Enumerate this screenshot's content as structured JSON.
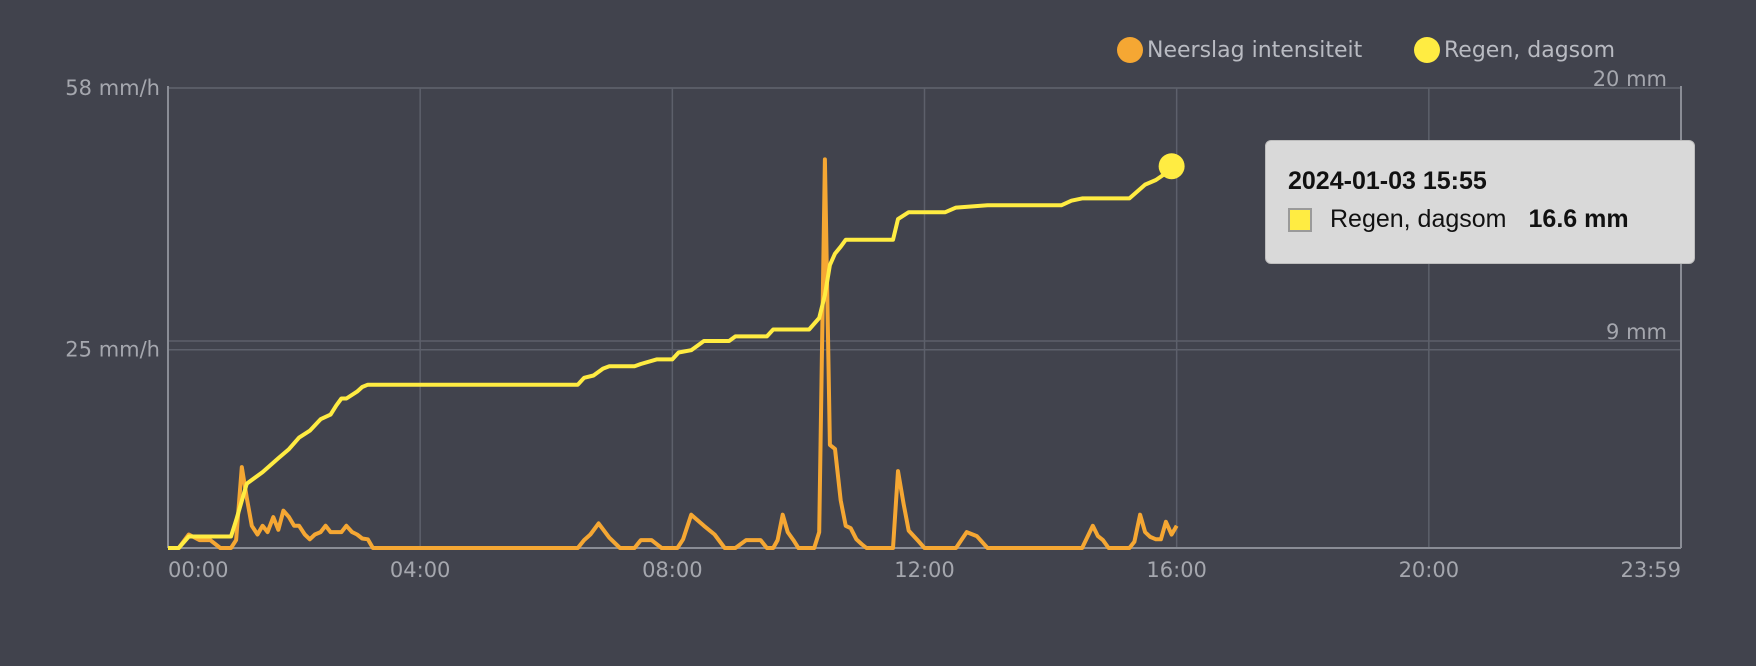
{
  "colors": {
    "background": "#41434d",
    "intensity": "#f5a733",
    "cumulative": "#ffec42",
    "grid": "#5d606b",
    "axis": "#8a8d96",
    "text": "#a5a7ae"
  },
  "legend": [
    {
      "label": "Neerslag intensiteit",
      "color": "#f5a733"
    },
    {
      "label": "Regen, dagsom",
      "color": "#ffec42"
    }
  ],
  "tooltip": {
    "title": "2024-01-03 15:55",
    "series": "Regen, dagsom",
    "value": "16.6 mm"
  },
  "chart_data": {
    "type": "line",
    "x_unit": "hours since 00:00",
    "x_range": [
      0,
      24
    ],
    "x_ticks": [
      "00:00",
      "04:00",
      "08:00",
      "12:00",
      "16:00",
      "20:00",
      "23:59"
    ],
    "y_left": {
      "ticks": [
        "58 mm/h",
        "25 mm/h"
      ],
      "range": [
        0,
        58
      ]
    },
    "y_right": {
      "ticks": [
        "20 mm",
        "9 mm"
      ],
      "range": [
        0,
        20
      ]
    },
    "series": [
      {
        "name": "Neerslag intensiteit",
        "axis": "left",
        "unit": "mm/h",
        "points": [
          [
            0,
            0
          ],
          [
            0.17,
            0
          ],
          [
            0.33,
            1.7
          ],
          [
            0.5,
            1
          ],
          [
            0.67,
            1
          ],
          [
            0.83,
            0
          ],
          [
            1.0,
            0
          ],
          [
            1.08,
            1
          ],
          [
            1.17,
            10.2
          ],
          [
            1.25,
            6.3
          ],
          [
            1.33,
            2.8
          ],
          [
            1.42,
            1.7
          ],
          [
            1.5,
            2.8
          ],
          [
            1.58,
            2
          ],
          [
            1.67,
            3.9
          ],
          [
            1.75,
            2.3
          ],
          [
            1.83,
            4.7
          ],
          [
            1.92,
            3.9
          ],
          [
            2.0,
            2.8
          ],
          [
            2.08,
            2.8
          ],
          [
            2.17,
            1.7
          ],
          [
            2.25,
            1.1
          ],
          [
            2.33,
            1.7
          ],
          [
            2.42,
            2
          ],
          [
            2.5,
            2.8
          ],
          [
            2.58,
            2
          ],
          [
            2.67,
            2
          ],
          [
            2.75,
            2
          ],
          [
            2.83,
            2.8
          ],
          [
            2.92,
            2
          ],
          [
            3.0,
            1.7
          ],
          [
            3.08,
            1.2
          ],
          [
            3.17,
            1.1
          ],
          [
            3.25,
            0
          ],
          [
            6.5,
            0
          ],
          [
            6.6,
            1
          ],
          [
            6.7,
            1.7
          ],
          [
            6.83,
            3.1
          ],
          [
            7.0,
            1.3
          ],
          [
            7.17,
            0
          ],
          [
            7.4,
            0
          ],
          [
            7.5,
            1
          ],
          [
            7.67,
            1
          ],
          [
            7.83,
            0
          ],
          [
            8.08,
            0
          ],
          [
            8.17,
            1.1
          ],
          [
            8.3,
            4.2
          ],
          [
            8.5,
            2.8
          ],
          [
            8.67,
            1.7
          ],
          [
            8.83,
            0
          ],
          [
            9.0,
            0
          ],
          [
            9.17,
            1
          ],
          [
            9.4,
            1
          ],
          [
            9.5,
            0
          ],
          [
            9.6,
            0
          ],
          [
            9.67,
            1
          ],
          [
            9.75,
            4.2
          ],
          [
            9.83,
            2
          ],
          [
            9.92,
            1
          ],
          [
            10.0,
            0
          ],
          [
            10.25,
            0
          ],
          [
            10.33,
            2
          ],
          [
            10.42,
            49
          ],
          [
            10.5,
            13
          ],
          [
            10.58,
            12.5
          ],
          [
            10.67,
            6
          ],
          [
            10.75,
            2.8
          ],
          [
            10.83,
            2.5
          ],
          [
            10.92,
            1.1
          ],
          [
            11.0,
            0.5
          ],
          [
            11.08,
            0
          ],
          [
            11.5,
            0
          ],
          [
            11.58,
            9.7
          ],
          [
            11.67,
            5.5
          ],
          [
            11.75,
            2.2
          ],
          [
            11.9,
            0.9
          ],
          [
            12.0,
            0
          ],
          [
            12.5,
            0
          ],
          [
            12.67,
            2
          ],
          [
            12.83,
            1.5
          ],
          [
            13.0,
            0
          ],
          [
            14.5,
            0
          ],
          [
            14.67,
            2.8
          ],
          [
            14.75,
            1.5
          ],
          [
            14.83,
            1
          ],
          [
            14.92,
            0
          ],
          [
            15.25,
            0
          ],
          [
            15.33,
            0.8
          ],
          [
            15.42,
            4.2
          ],
          [
            15.5,
            2
          ],
          [
            15.58,
            1.4
          ],
          [
            15.67,
            1.1
          ],
          [
            15.75,
            1.1
          ],
          [
            15.83,
            3.3
          ],
          [
            15.92,
            1.7
          ],
          [
            16.0,
            2.8
          ]
        ]
      },
      {
        "name": "Regen, dagsom",
        "axis": "right",
        "unit": "mm",
        "points": [
          [
            0,
            0
          ],
          [
            0.17,
            0
          ],
          [
            0.33,
            0.5
          ],
          [
            0.5,
            0.5
          ],
          [
            1.0,
            0.5
          ],
          [
            1.08,
            1.2
          ],
          [
            1.25,
            2.8
          ],
          [
            1.5,
            3.3
          ],
          [
            1.75,
            3.9
          ],
          [
            1.92,
            4.3
          ],
          [
            2.08,
            4.8
          ],
          [
            2.25,
            5.1
          ],
          [
            2.42,
            5.6
          ],
          [
            2.58,
            5.8
          ],
          [
            2.67,
            6.2
          ],
          [
            2.75,
            6.5
          ],
          [
            2.83,
            6.5
          ],
          [
            3.0,
            6.8
          ],
          [
            3.08,
            7.0
          ],
          [
            3.17,
            7.1
          ],
          [
            6.5,
            7.1
          ],
          [
            6.6,
            7.4
          ],
          [
            6.75,
            7.5
          ],
          [
            6.9,
            7.8
          ],
          [
            7.0,
            7.9
          ],
          [
            7.4,
            7.9
          ],
          [
            7.5,
            8.0
          ],
          [
            7.75,
            8.2
          ],
          [
            8.0,
            8.2
          ],
          [
            8.1,
            8.5
          ],
          [
            8.3,
            8.6
          ],
          [
            8.4,
            8.8
          ],
          [
            8.5,
            9.0
          ],
          [
            8.9,
            9.0
          ],
          [
            9.0,
            9.2
          ],
          [
            9.5,
            9.2
          ],
          [
            9.6,
            9.5
          ],
          [
            9.75,
            9.5
          ],
          [
            10.17,
            9.5
          ],
          [
            10.33,
            10.0
          ],
          [
            10.42,
            11.0
          ],
          [
            10.5,
            12.3
          ],
          [
            10.58,
            12.8
          ],
          [
            10.67,
            13.1
          ],
          [
            10.75,
            13.4
          ],
          [
            11.0,
            13.4
          ],
          [
            11.5,
            13.4
          ],
          [
            11.58,
            14.3
          ],
          [
            11.75,
            14.6
          ],
          [
            12.0,
            14.6
          ],
          [
            12.33,
            14.6
          ],
          [
            12.5,
            14.8
          ],
          [
            13.0,
            14.9
          ],
          [
            14.17,
            14.9
          ],
          [
            14.33,
            15.1
          ],
          [
            14.5,
            15.2
          ],
          [
            15.25,
            15.2
          ],
          [
            15.5,
            15.8
          ],
          [
            15.67,
            16.0
          ],
          [
            15.83,
            16.3
          ],
          [
            15.92,
            16.6
          ]
        ]
      }
    ],
    "grid": true,
    "legend_position": "top-right"
  }
}
